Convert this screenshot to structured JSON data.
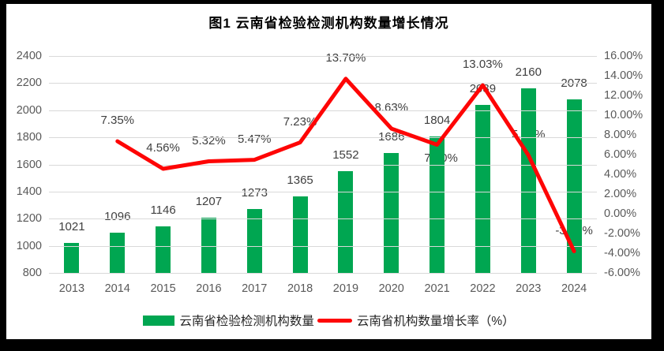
{
  "title": "图1 云南省检验检测机构数量增长情况",
  "frame": {
    "background": "#000000",
    "panel_background": "#ffffff"
  },
  "chart_data": {
    "type": "combo-bar-line",
    "categories": [
      "2013",
      "2014",
      "2015",
      "2016",
      "2017",
      "2018",
      "2019",
      "2020",
      "2021",
      "2022",
      "2023",
      "2024"
    ],
    "series": [
      {
        "name": "云南省检验检测机构数量",
        "type": "bar",
        "color": "#00a651",
        "axis": "left",
        "values": [
          1021,
          1096,
          1146,
          1207,
          1273,
          1365,
          1552,
          1686,
          1804,
          2039,
          2160,
          2078
        ],
        "point_labels": [
          "1021",
          "1096",
          "1146",
          "1207",
          "1273",
          "1365",
          "1552",
          "1686",
          "1804",
          "2039",
          "2160",
          "2078"
        ]
      },
      {
        "name": "云南省机构数量增长率（%）",
        "type": "line",
        "color": "#fe0505",
        "axis": "right",
        "values": [
          null,
          7.35,
          4.56,
          5.32,
          5.47,
          7.23,
          13.7,
          8.63,
          7.0,
          13.03,
          5.93,
          -3.8
        ],
        "point_labels": [
          null,
          "7.35%",
          "4.56%",
          "5.32%",
          "5.47%",
          "7.23%",
          "13.70%",
          "8.63%",
          "7.00%",
          "13.03%",
          "5.93%",
          "-3.80%"
        ]
      }
    ],
    "left_axis": {
      "min": 800,
      "max": 2400,
      "step": 200,
      "tick_labels": [
        "2400",
        "2200",
        "2000",
        "1800",
        "1600",
        "1400",
        "1200",
        "1000",
        "800"
      ]
    },
    "right_axis": {
      "min": -6,
      "max": 16,
      "step": 2,
      "tick_labels": [
        "16.00%",
        "14.00%",
        "12.00%",
        "10.00%",
        "8.00%",
        "6.00%",
        "4.00%",
        "2.00%",
        "0.00%",
        "-2.00%",
        "-4.00%",
        "-6.00%"
      ]
    },
    "grid": true,
    "gridline_color": "#d9d9d9",
    "axis_text_color": "#595959",
    "label_text_color": "#404040",
    "legend_position": "bottom"
  },
  "legend": {
    "bar_label": "云南省检验检测机构数量",
    "line_label": "云南省机构数量增长率（%）"
  }
}
